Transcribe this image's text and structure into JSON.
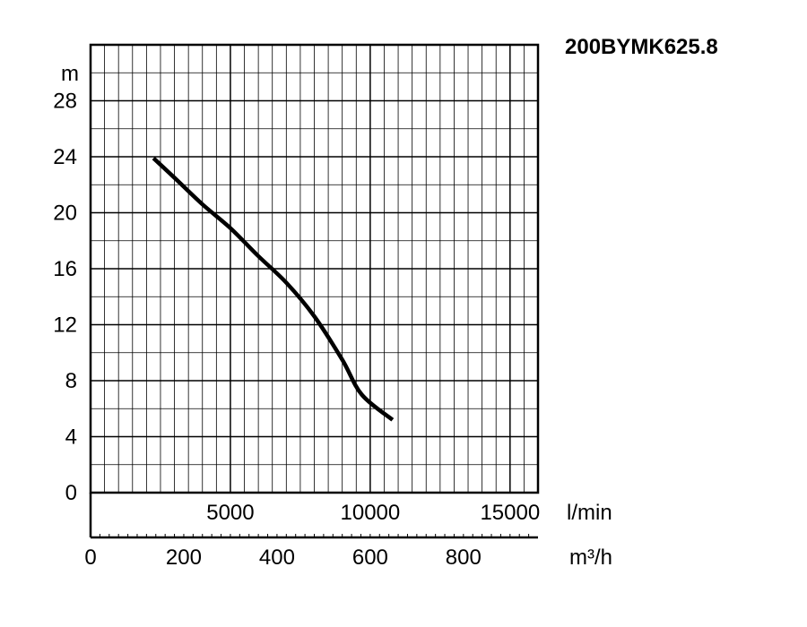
{
  "chart_data": {
    "type": "line",
    "title": "200BYMK625.8",
    "ylabel": "m",
    "ylim": [
      0,
      32
    ],
    "y_ticks": [
      0,
      4,
      8,
      12,
      16,
      20,
      24,
      28
    ],
    "x_lpm": {
      "unit": "l/min",
      "range": [
        0,
        16000
      ],
      "ticks": [
        5000,
        10000,
        15000
      ]
    },
    "x_m3h": {
      "unit": "m³/h",
      "range": [
        0,
        960
      ],
      "ticks": [
        0,
        200,
        400,
        600,
        800
      ]
    },
    "series": [
      {
        "x_unit": "l/min",
        "color": "#000000",
        "points": [
          {
            "x": 2250,
            "y": 23.9
          },
          {
            "x": 3000,
            "y": 22.5
          },
          {
            "x": 4000,
            "y": 20.6
          },
          {
            "x": 5000,
            "y": 18.9
          },
          {
            "x": 6000,
            "y": 16.9
          },
          {
            "x": 7000,
            "y": 15.0
          },
          {
            "x": 8000,
            "y": 12.6
          },
          {
            "x": 9000,
            "y": 9.5
          },
          {
            "x": 9700,
            "y": 7.0
          },
          {
            "x": 10800,
            "y": 5.2
          }
        ]
      }
    ],
    "grid": true
  }
}
